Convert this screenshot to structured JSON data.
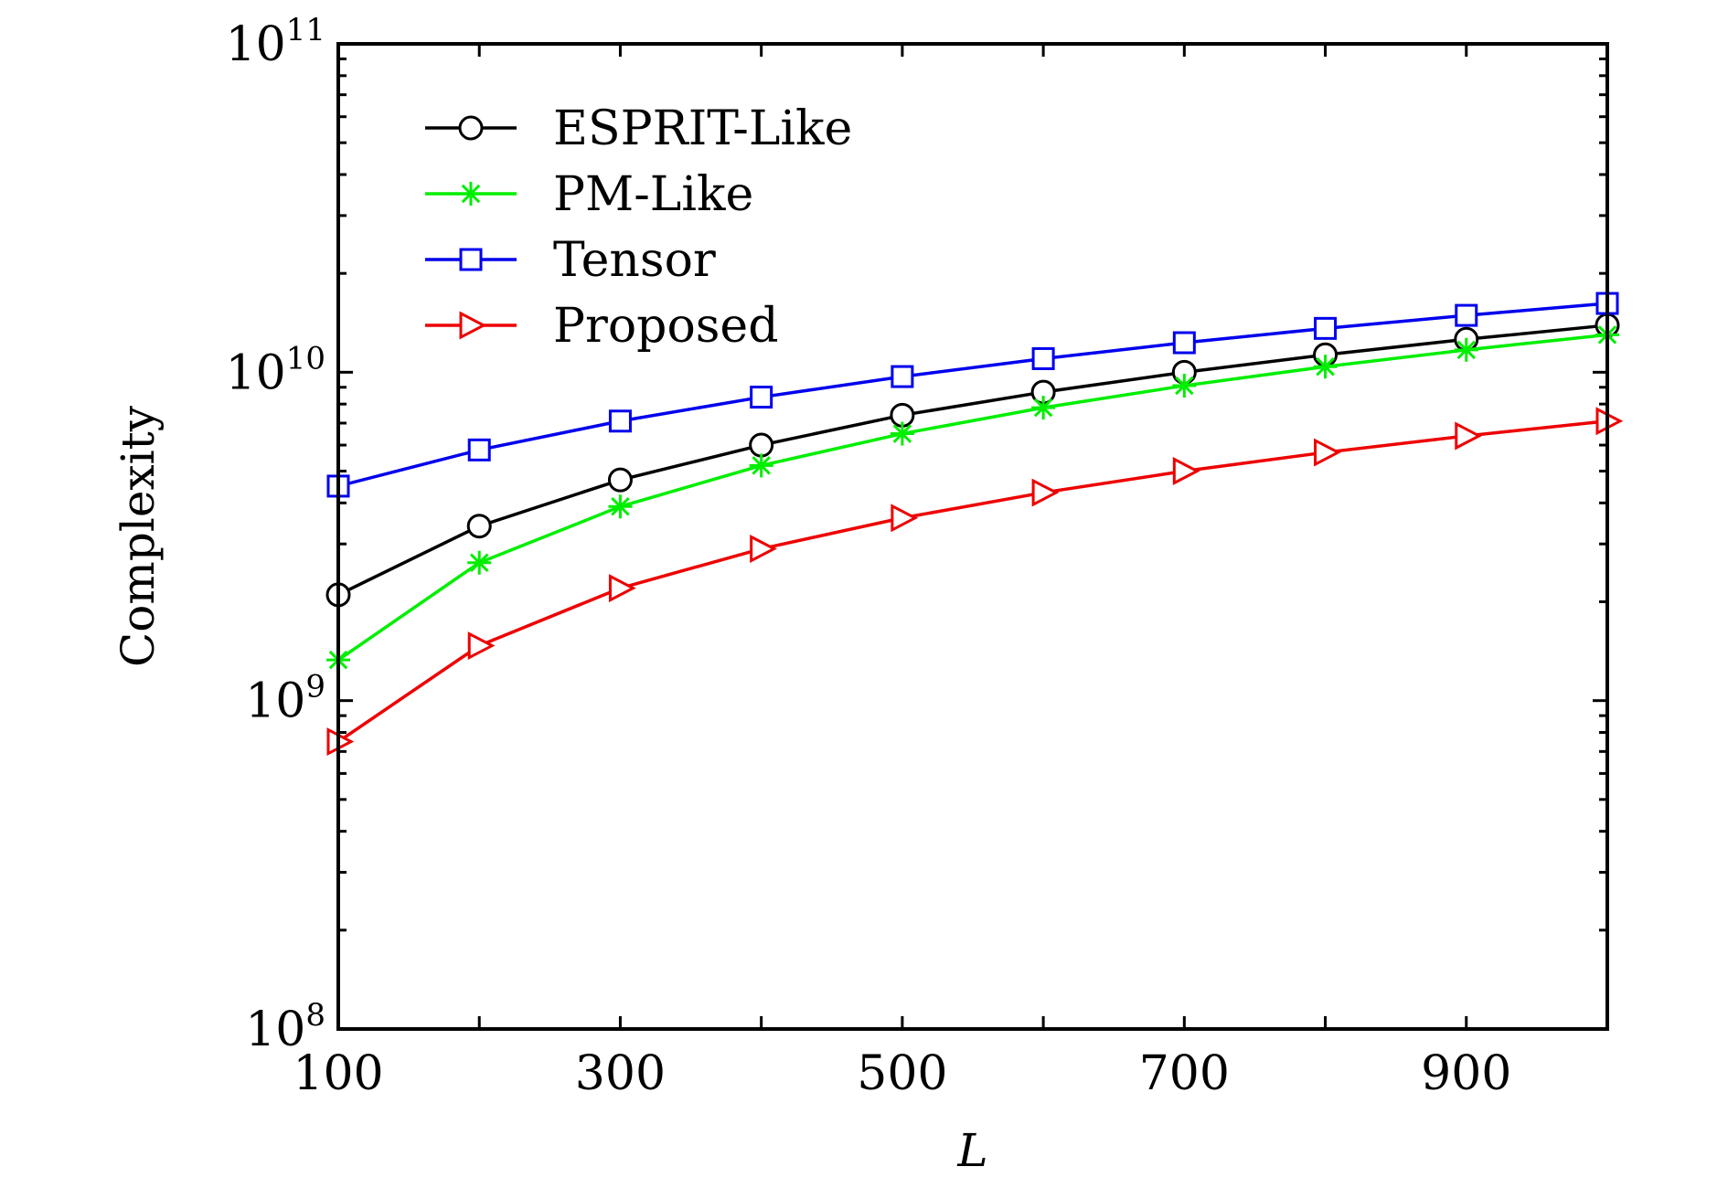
{
  "chart_data": {
    "type": "line",
    "xlabel": "L",
    "ylabel": "Complexity",
    "xlim": [
      100,
      1000
    ],
    "ylim": [
      100000000,
      100000000000
    ],
    "yscale": "log",
    "x_ticks": [
      100,
      300,
      500,
      700,
      900
    ],
    "x_tick_labels": [
      "100",
      "300",
      "500",
      "700",
      "900"
    ],
    "y_ticks": [
      {
        "value": 100000000,
        "base": "10",
        "exp": "8"
      },
      {
        "value": 1000000000,
        "base": "10",
        "exp": "9"
      },
      {
        "value": 10000000000,
        "base": "10",
        "exp": "10"
      },
      {
        "value": 100000000000,
        "base": "10",
        "exp": "11"
      }
    ],
    "grid": false,
    "legend_position": "top-left",
    "x": [
      100,
      200,
      300,
      400,
      500,
      600,
      700,
      800,
      900,
      1000
    ],
    "series": [
      {
        "name": "ESPRIT-Like",
        "color": "#000000",
        "marker": "circle",
        "values": [
          2100000000,
          3400000000,
          4700000000,
          6000000000,
          7400000000,
          8700000000,
          10000000000,
          11300000000,
          12600000000,
          13900000000
        ]
      },
      {
        "name": "PM-Like",
        "color": "#00ee00",
        "marker": "asterisk",
        "values": [
          1330000000,
          2630000000,
          3900000000,
          5200000000,
          6500000000,
          7800000000,
          9100000000,
          10400000000,
          11700000000,
          13000000000
        ]
      },
      {
        "name": "Tensor",
        "color": "#0000ee",
        "marker": "square",
        "values": [
          4500000000,
          5800000000,
          7100000000,
          8400000000,
          9700000000,
          11000000000,
          12300000000,
          13600000000,
          14900000000,
          16200000000
        ]
      },
      {
        "name": "Proposed",
        "color": "#ee0000",
        "marker": "triangle-right",
        "values": [
          750000000,
          1470000000,
          2200000000,
          2900000000,
          3600000000,
          4300000000,
          5000000000,
          5700000000,
          6400000000,
          7100000000
        ]
      }
    ]
  }
}
